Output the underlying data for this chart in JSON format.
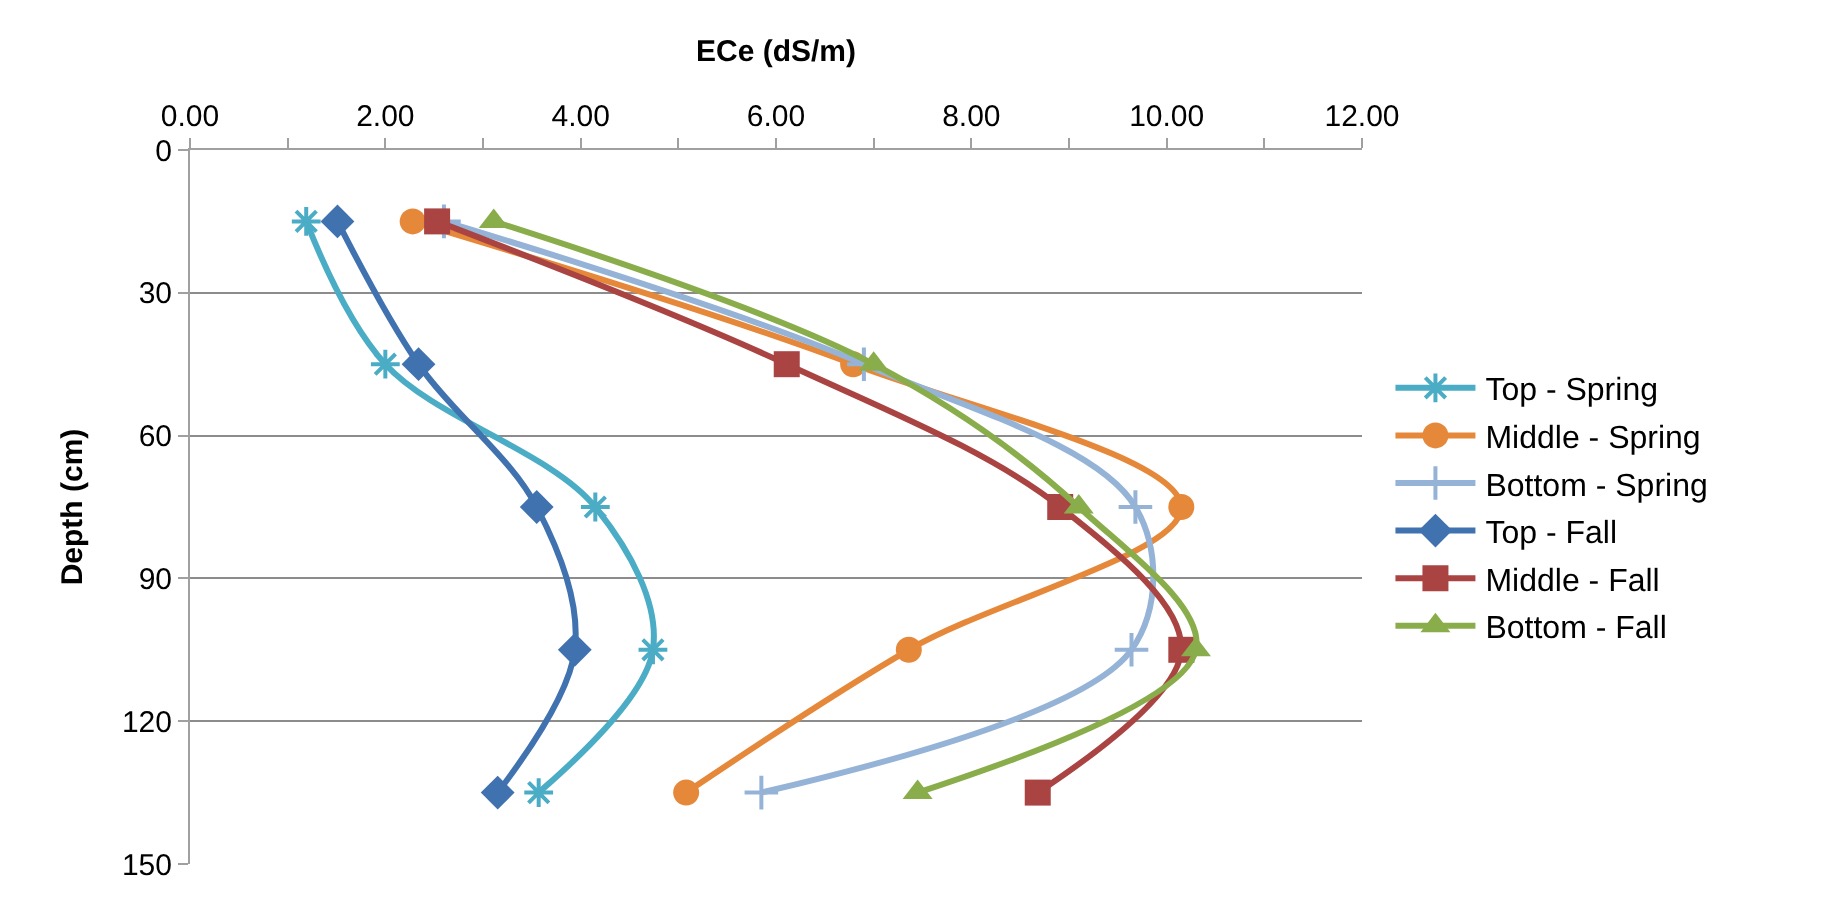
{
  "chart_data": {
    "type": "line",
    "xlabel": "ECe (dS/m)",
    "ylabel": "Depth (cm)",
    "xlim": [
      0,
      12
    ],
    "xticks": [
      {
        "value": 0,
        "label": "0.00"
      },
      {
        "value": 1,
        "label": null
      },
      {
        "value": 2,
        "label": "2.00"
      },
      {
        "value": 3,
        "label": null
      },
      {
        "value": 4,
        "label": "4.00"
      },
      {
        "value": 5,
        "label": null
      },
      {
        "value": 6,
        "label": "6.00"
      },
      {
        "value": 7,
        "label": null
      },
      {
        "value": 8,
        "label": "8.00"
      },
      {
        "value": 9,
        "label": null
      },
      {
        "value": 10,
        "label": "10.00"
      },
      {
        "value": 11,
        "label": null
      },
      {
        "value": 12,
        "label": "12.00"
      }
    ],
    "ylim": [
      150,
      0
    ],
    "yticks": [
      0,
      30,
      60,
      90,
      120,
      150
    ],
    "grid": "y",
    "legend": "right",
    "series": [
      {
        "name": "Top - Spring",
        "color": "#4bacc6",
        "marker": "cross",
        "x": [
          1.19,
          2.0,
          4.15,
          4.74,
          3.57
        ],
        "values": [
          15,
          45,
          75,
          105,
          135
        ]
      },
      {
        "name": "Middle - Spring",
        "color": "#e6883a",
        "marker": "circle",
        "x": [
          2.28,
          6.79,
          10.15,
          7.36,
          5.08
        ],
        "values": [
          15,
          45,
          75,
          105,
          135
        ]
      },
      {
        "name": "Bottom - Spring",
        "color": "#95b3d7",
        "marker": "cross",
        "x": [
          2.6,
          6.9,
          9.68,
          9.64,
          5.85
        ],
        "values": [
          15,
          45,
          75,
          105,
          135
        ]
      },
      {
        "name": "Top - Fall",
        "color": "#4072b0",
        "marker": "diamond",
        "x": [
          1.51,
          2.34,
          3.55,
          3.94,
          3.15
        ],
        "values": [
          15,
          45,
          75,
          105,
          135
        ]
      },
      {
        "name": "Middle - Fall",
        "color": "#aa4442",
        "marker": "square",
        "x": [
          2.53,
          6.11,
          8.91,
          10.15,
          8.68
        ],
        "values": [
          15,
          45,
          75,
          105,
          135
        ]
      },
      {
        "name": "Bottom - Fall",
        "color": "#8aad4c",
        "marker": "triangle",
        "x": [
          3.11,
          7.0,
          9.1,
          10.3,
          7.45
        ],
        "values": [
          15,
          45,
          75,
          105,
          135
        ]
      }
    ]
  }
}
